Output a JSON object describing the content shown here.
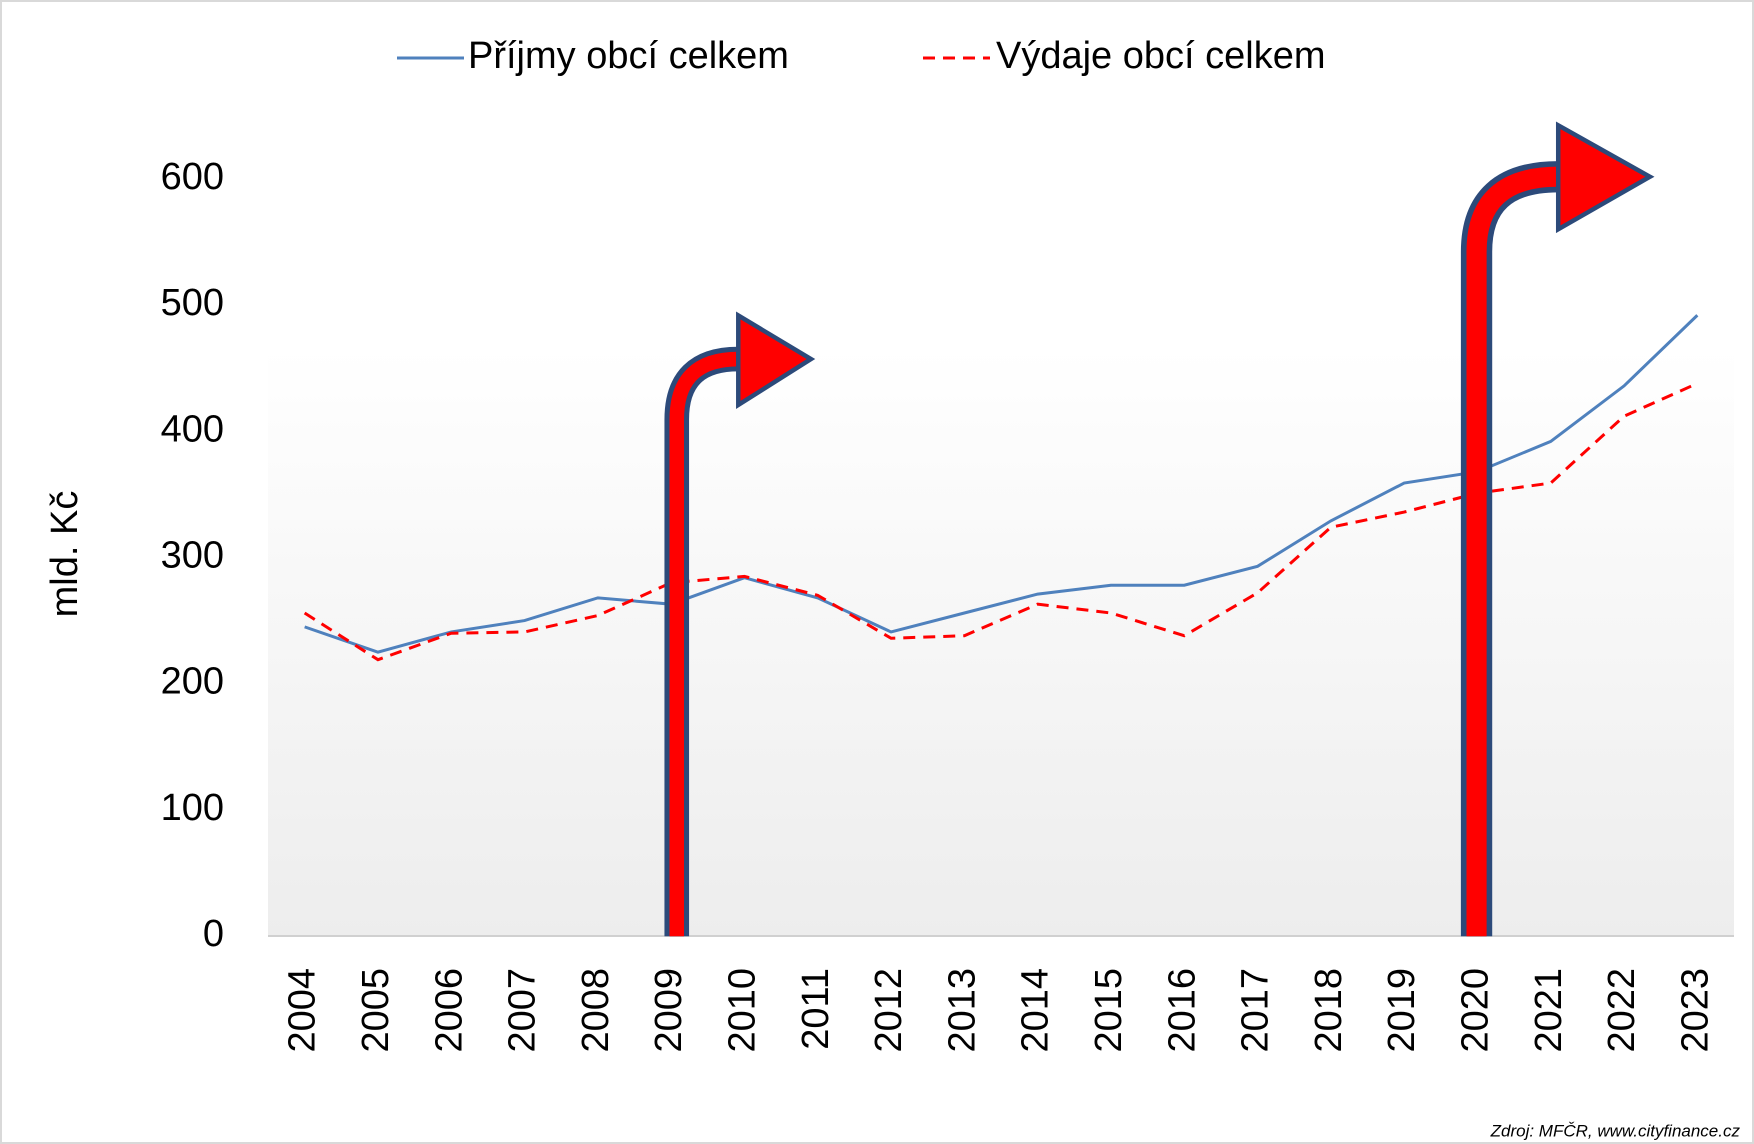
{
  "chart_data": {
    "type": "line",
    "categories": [
      "2004",
      "2005",
      "2006",
      "2007",
      "2008",
      "2009",
      "2010",
      "2011",
      "2012",
      "2013",
      "2014",
      "2015",
      "2016",
      "2017",
      "2018",
      "2019",
      "2020",
      "2021",
      "2022",
      "2023"
    ],
    "series": [
      {
        "name": "Příjmy obcí celkem",
        "color": "#4f81bd",
        "dash": false,
        "values": [
          245,
          225,
          241,
          250,
          268,
          263,
          284,
          268,
          241,
          256,
          271,
          278,
          278,
          293,
          329,
          359,
          368,
          392,
          436,
          492
        ]
      },
      {
        "name": "Výdaje obcí celkem",
        "color": "#ff0000",
        "dash": true,
        "values": [
          256,
          219,
          240,
          241,
          254,
          280,
          285,
          270,
          236,
          238,
          263,
          256,
          238,
          272,
          324,
          336,
          351,
          359,
          412,
          438
        ]
      }
    ],
    "ylabel": "mld. Kč",
    "ylim": [
      0,
      600
    ],
    "yticks": [
      0,
      100,
      200,
      300,
      400,
      500,
      600
    ],
    "grid": false,
    "source": "Zdroj: MFČR, www.cityfinance.cz"
  }
}
